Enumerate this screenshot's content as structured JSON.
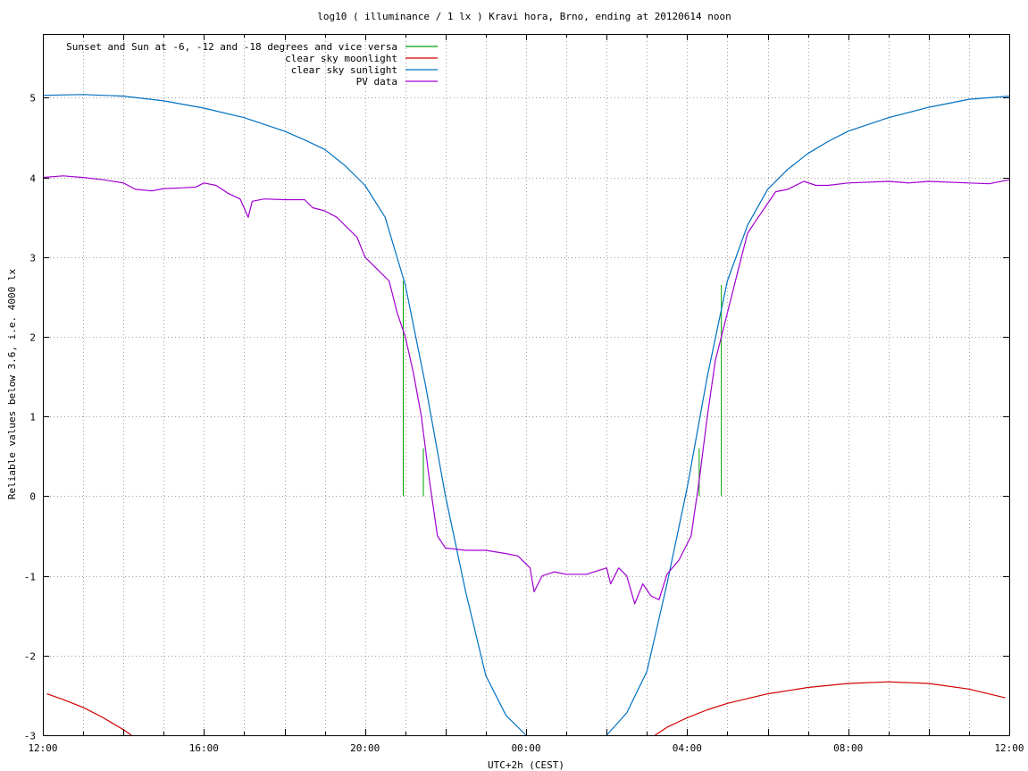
{
  "chart_data": {
    "type": "line",
    "title": "log10 ( illuminance / 1 lx ) Kravi hora, Brno, ending at 20120614 noon",
    "xlabel": "UTC+2h (CEST)",
    "ylabel": "Reliable values below 3.6, i.e. 4000 lx",
    "x_unit": "hours",
    "xlim": [
      12,
      36
    ],
    "ylim": [
      -3,
      5.8
    ],
    "grid": true,
    "legend_position": "top-left",
    "x_ticks": [
      {
        "value": 12,
        "label": "12:00"
      },
      {
        "value": 16,
        "label": "16:00"
      },
      {
        "value": 20,
        "label": "20:00"
      },
      {
        "value": 24,
        "label": "00:00"
      },
      {
        "value": 28,
        "label": "04:00"
      },
      {
        "value": 32,
        "label": "08:00"
      },
      {
        "value": 36,
        "label": "12:00"
      }
    ],
    "y_ticks": [
      {
        "value": 5,
        "label": "5"
      },
      {
        "value": 4,
        "label": "4"
      },
      {
        "value": 3,
        "label": "3"
      },
      {
        "value": 2,
        "label": "2"
      },
      {
        "value": 1,
        "label": "1"
      },
      {
        "value": 0,
        "label": "0"
      },
      {
        "value": -1,
        "label": "-1"
      },
      {
        "value": -2,
        "label": "-2"
      },
      {
        "value": -3,
        "label": "-3"
      }
    ],
    "series": [
      {
        "name": "Sunset and Sun at -6, -12 and -18 degrees and vice versa",
        "color": "#00a000",
        "style": "impulse",
        "points": [
          [
            20.95,
            2.7
          ],
          [
            21.45,
            0.6
          ],
          [
            22.7,
            0.0
          ],
          [
            27.05,
            0.0
          ],
          [
            28.3,
            0.6
          ],
          [
            28.85,
            2.65
          ]
        ]
      },
      {
        "name": "clear sky moonlight",
        "color": "#d00000",
        "style": "line",
        "points": [
          [
            12.1,
            -2.48
          ],
          [
            12.5,
            -2.55
          ],
          [
            13.0,
            -2.65
          ],
          [
            13.5,
            -2.78
          ],
          [
            14.0,
            -2.93
          ],
          [
            14.2,
            -3.0
          ],
          [
            null,
            null
          ],
          [
            27.2,
            -3.0
          ],
          [
            27.5,
            -2.9
          ],
          [
            28.0,
            -2.78
          ],
          [
            28.5,
            -2.68
          ],
          [
            29.0,
            -2.6
          ],
          [
            30.0,
            -2.48
          ],
          [
            31.0,
            -2.4
          ],
          [
            32.0,
            -2.35
          ],
          [
            33.0,
            -2.33
          ],
          [
            34.0,
            -2.35
          ],
          [
            35.0,
            -2.42
          ],
          [
            35.9,
            -2.53
          ]
        ]
      },
      {
        "name": "clear sky sunlight",
        "color": "#0070c0",
        "style": "line",
        "points": [
          [
            12.0,
            5.03
          ],
          [
            13.0,
            5.04
          ],
          [
            14.0,
            5.02
          ],
          [
            15.0,
            4.96
          ],
          [
            16.0,
            4.87
          ],
          [
            17.0,
            4.75
          ],
          [
            18.0,
            4.58
          ],
          [
            18.5,
            4.47
          ],
          [
            19.0,
            4.35
          ],
          [
            19.5,
            4.15
          ],
          [
            20.0,
            3.9
          ],
          [
            20.5,
            3.5
          ],
          [
            21.0,
            2.65
          ],
          [
            21.5,
            1.4
          ],
          [
            22.0,
            0.0
          ],
          [
            22.5,
            -1.2
          ],
          [
            23.0,
            -2.25
          ],
          [
            23.5,
            -2.75
          ],
          [
            24.0,
            -3.0
          ],
          [
            null,
            null
          ],
          [
            26.0,
            -3.0
          ],
          [
            26.5,
            -2.72
          ],
          [
            27.0,
            -2.2
          ],
          [
            27.5,
            -1.1
          ],
          [
            28.0,
            0.1
          ],
          [
            28.5,
            1.5
          ],
          [
            29.0,
            2.7
          ],
          [
            29.5,
            3.4
          ],
          [
            30.0,
            3.85
          ],
          [
            30.5,
            4.1
          ],
          [
            31.0,
            4.3
          ],
          [
            31.5,
            4.45
          ],
          [
            32.0,
            4.58
          ],
          [
            33.0,
            4.75
          ],
          [
            34.0,
            4.88
          ],
          [
            35.0,
            4.98
          ],
          [
            36.0,
            5.02
          ]
        ]
      },
      {
        "name": "PV data",
        "color": "#a000d0",
        "style": "line",
        "points": [
          [
            12.0,
            4.0
          ],
          [
            12.5,
            4.02
          ],
          [
            13.0,
            4.0
          ],
          [
            13.5,
            3.97
          ],
          [
            14.0,
            3.93
          ],
          [
            14.3,
            3.85
          ],
          [
            14.7,
            3.83
          ],
          [
            15.0,
            3.86
          ],
          [
            15.5,
            3.87
          ],
          [
            15.8,
            3.88
          ],
          [
            16.0,
            3.93
          ],
          [
            16.3,
            3.9
          ],
          [
            16.6,
            3.8
          ],
          [
            16.9,
            3.73
          ],
          [
            17.1,
            3.5
          ],
          [
            17.2,
            3.7
          ],
          [
            17.5,
            3.73
          ],
          [
            18.0,
            3.72
          ],
          [
            18.5,
            3.72
          ],
          [
            18.7,
            3.62
          ],
          [
            19.0,
            3.58
          ],
          [
            19.3,
            3.5
          ],
          [
            19.6,
            3.35
          ],
          [
            19.8,
            3.25
          ],
          [
            20.0,
            3.0
          ],
          [
            20.3,
            2.85
          ],
          [
            20.6,
            2.7
          ],
          [
            20.8,
            2.3
          ],
          [
            21.0,
            2.0
          ],
          [
            21.2,
            1.55
          ],
          [
            21.4,
            1.0
          ],
          [
            21.6,
            0.2
          ],
          [
            21.8,
            -0.5
          ],
          [
            22.0,
            -0.65
          ],
          [
            22.5,
            -0.68
          ],
          [
            23.0,
            -0.68
          ],
          [
            23.5,
            -0.72
          ],
          [
            23.8,
            -0.75
          ],
          [
            24.1,
            -0.9
          ],
          [
            24.2,
            -1.2
          ],
          [
            24.4,
            -1.0
          ],
          [
            24.7,
            -0.95
          ],
          [
            25.0,
            -0.98
          ],
          [
            25.5,
            -0.98
          ],
          [
            26.0,
            -0.9
          ],
          [
            26.1,
            -1.1
          ],
          [
            26.3,
            -0.9
          ],
          [
            26.5,
            -1.0
          ],
          [
            26.7,
            -1.35
          ],
          [
            26.9,
            -1.1
          ],
          [
            27.1,
            -1.25
          ],
          [
            27.3,
            -1.3
          ],
          [
            27.5,
            -0.98
          ],
          [
            27.8,
            -0.8
          ],
          [
            28.1,
            -0.5
          ],
          [
            28.3,
            0.2
          ],
          [
            28.5,
            1.0
          ],
          [
            28.7,
            1.7
          ],
          [
            28.9,
            2.1
          ],
          [
            29.1,
            2.5
          ],
          [
            29.3,
            2.9
          ],
          [
            29.5,
            3.3
          ],
          [
            29.7,
            3.45
          ],
          [
            29.9,
            3.6
          ],
          [
            30.2,
            3.82
          ],
          [
            30.5,
            3.85
          ],
          [
            30.9,
            3.95
          ],
          [
            31.2,
            3.9
          ],
          [
            31.5,
            3.9
          ],
          [
            32.0,
            3.93
          ],
          [
            33.0,
            3.95
          ],
          [
            33.5,
            3.93
          ],
          [
            34.0,
            3.95
          ],
          [
            35.0,
            3.93
          ],
          [
            35.5,
            3.92
          ],
          [
            36.0,
            3.97
          ]
        ]
      }
    ]
  }
}
